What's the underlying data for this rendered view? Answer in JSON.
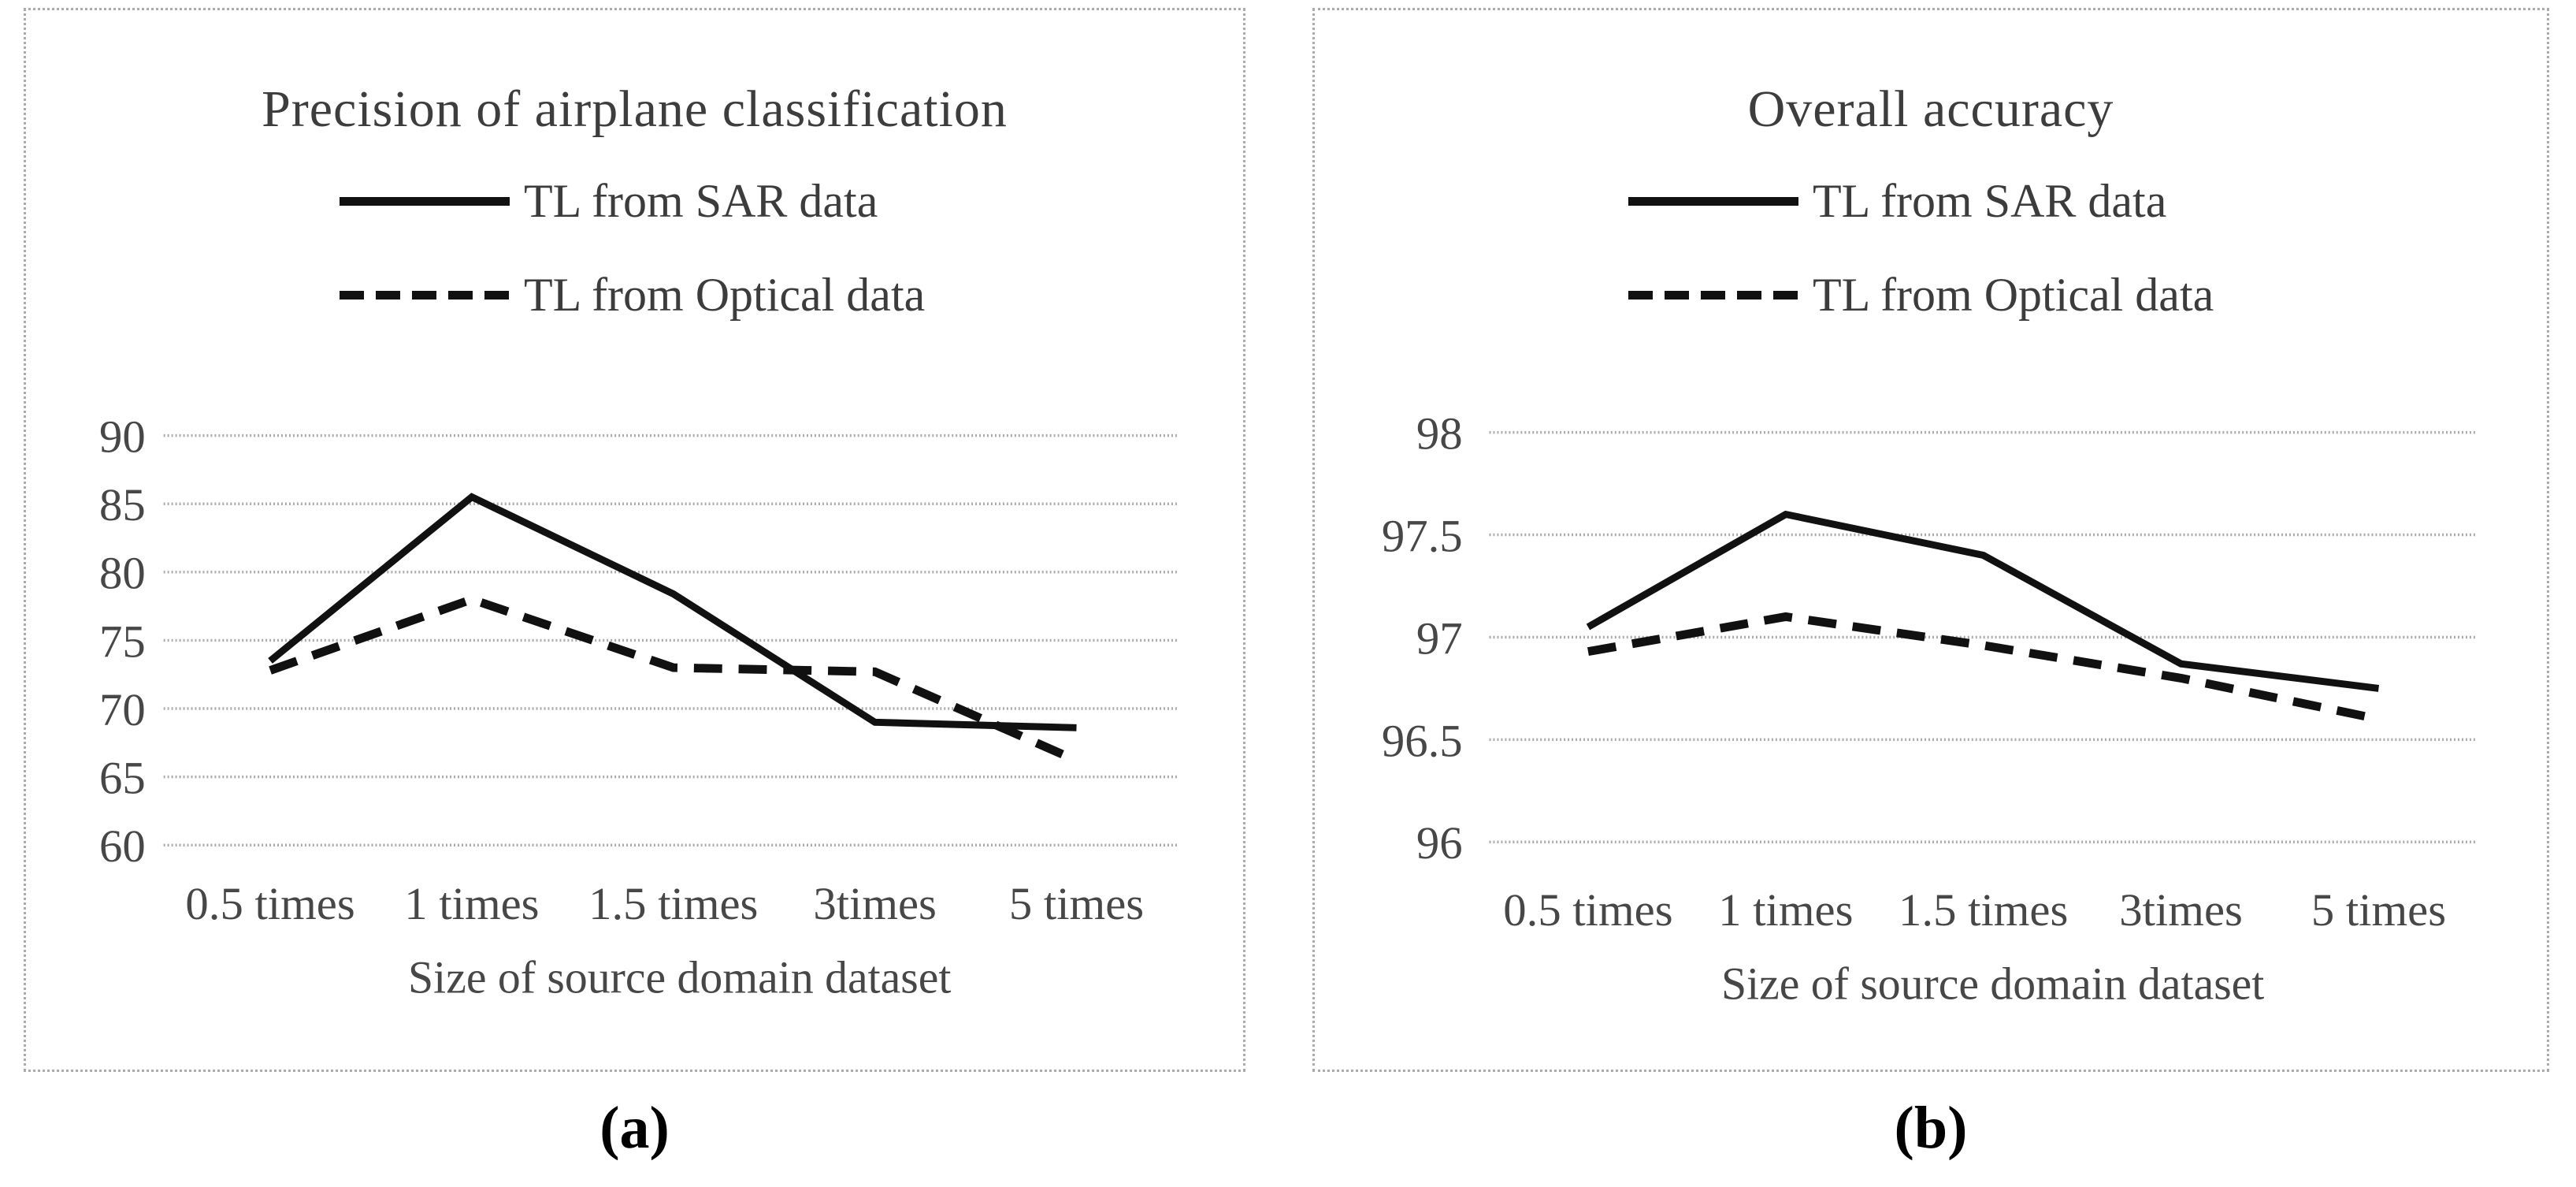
{
  "figure": {
    "captions": [
      "(a)",
      "(b)"
    ]
  },
  "colors": {
    "line": "#111111",
    "gridline": "#ababab",
    "text": "#3d3d3d"
  },
  "chart_data": [
    {
      "type": "line",
      "title": "Precision of airplane classification",
      "xlabel": "Size of source domain dataset",
      "ylabel": "",
      "categories": [
        "0.5 times",
        "1 times",
        "1.5 times",
        "3times",
        "5 times"
      ],
      "yticks": [
        90,
        85,
        80,
        75,
        70,
        65,
        60
      ],
      "ylim": [
        60,
        90
      ],
      "grid": true,
      "legend_position": "top",
      "series": [
        {
          "name": "TL from SAR data",
          "line_style": "solid",
          "color": "#111111",
          "values": [
            73.5,
            85.5,
            78.4,
            69,
            68.6
          ]
        },
        {
          "name": "TL from Optical data",
          "line_style": "dashed",
          "color": "#111111",
          "values": [
            72.8,
            78,
            73,
            72.7,
            66.2
          ]
        }
      ]
    },
    {
      "type": "line",
      "title": "Overall accuracy",
      "xlabel": "Size of source domain dataset",
      "ylabel": "",
      "categories": [
        "0.5 times",
        "1 times",
        "1.5 times",
        "3times",
        "5 times"
      ],
      "yticks": [
        98,
        97.5,
        97,
        96.5,
        96
      ],
      "ylim": [
        96,
        98
      ],
      "grid": true,
      "legend_position": "top",
      "series": [
        {
          "name": "TL from SAR data",
          "line_style": "solid",
          "color": "#111111",
          "values": [
            97.05,
            97.6,
            97.4,
            96.87,
            96.75
          ]
        },
        {
          "name": "TL from Optical data",
          "line_style": "dashed",
          "color": "#111111",
          "values": [
            96.93,
            97.1,
            96.96,
            96.8,
            96.6
          ]
        }
      ]
    }
  ]
}
